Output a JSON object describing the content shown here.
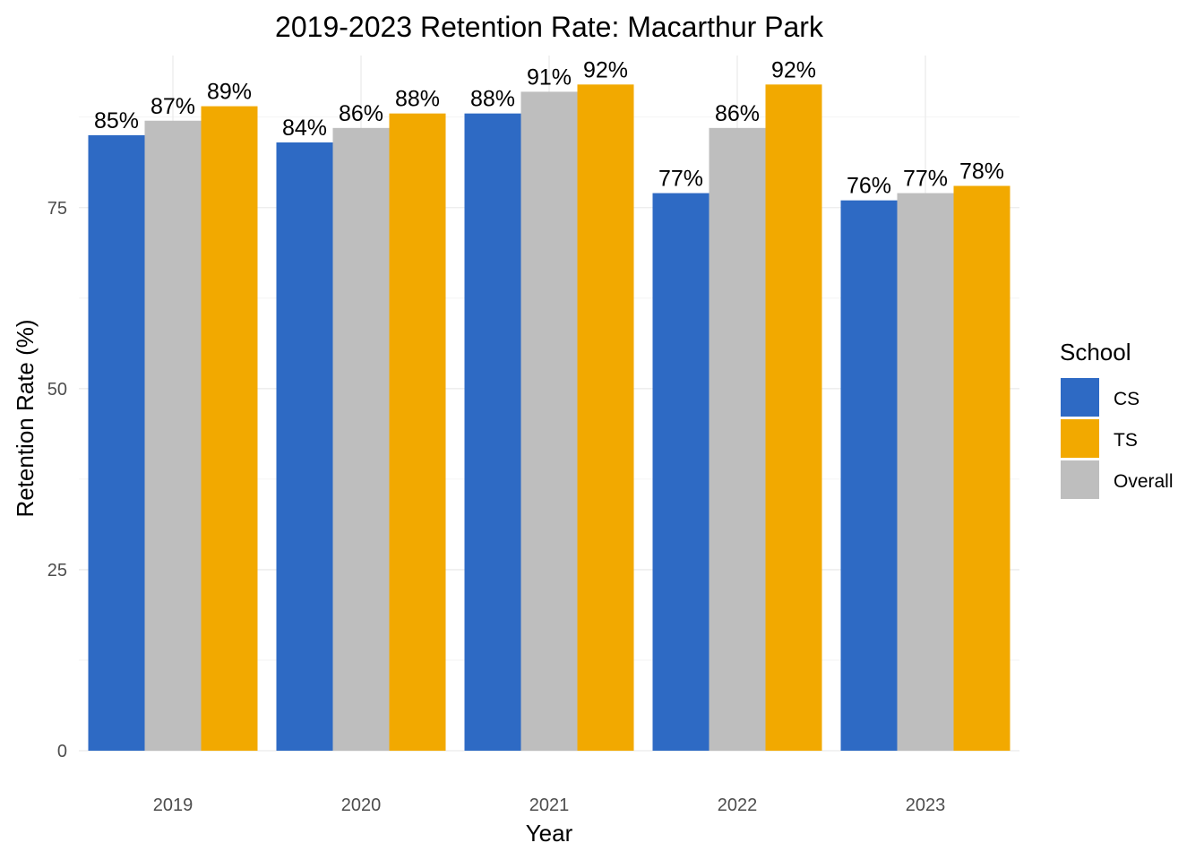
{
  "chart_data": {
    "type": "bar",
    "title": "2019-2023 Retention Rate: Macarthur Park",
    "xlabel": "Year",
    "ylabel": "Retention Rate (%)",
    "categories": [
      "2019",
      "2020",
      "2021",
      "2022",
      "2023"
    ],
    "series": [
      {
        "name": "CS",
        "color": "#2E6AC4",
        "values": [
          85,
          84,
          88,
          77,
          76
        ],
        "labels": [
          "85%",
          "84%",
          "88%",
          "77%",
          "76%"
        ]
      },
      {
        "name": "Overall",
        "color": "#BEBEBE",
        "values": [
          87,
          86,
          91,
          86,
          77
        ],
        "labels": [
          "87%",
          "86%",
          "91%",
          "86%",
          "77%"
        ]
      },
      {
        "name": "TS",
        "color": "#F2A900",
        "values": [
          89,
          88,
          92,
          92,
          78
        ],
        "labels": [
          "89%",
          "88%",
          "92%",
          "92%",
          "78%"
        ]
      }
    ],
    "ylim": [
      0,
      96
    ],
    "yticks": [
      0,
      25,
      50,
      75
    ],
    "ytick_labels": [
      "0",
      "25",
      "50",
      "75"
    ],
    "grid": true,
    "legend": {
      "title": "School",
      "position": "right",
      "entries": [
        {
          "label": "CS",
          "color": "#2E6AC4"
        },
        {
          "label": "TS",
          "color": "#F2A900"
        },
        {
          "label": "Overall",
          "color": "#BEBEBE"
        }
      ]
    }
  }
}
